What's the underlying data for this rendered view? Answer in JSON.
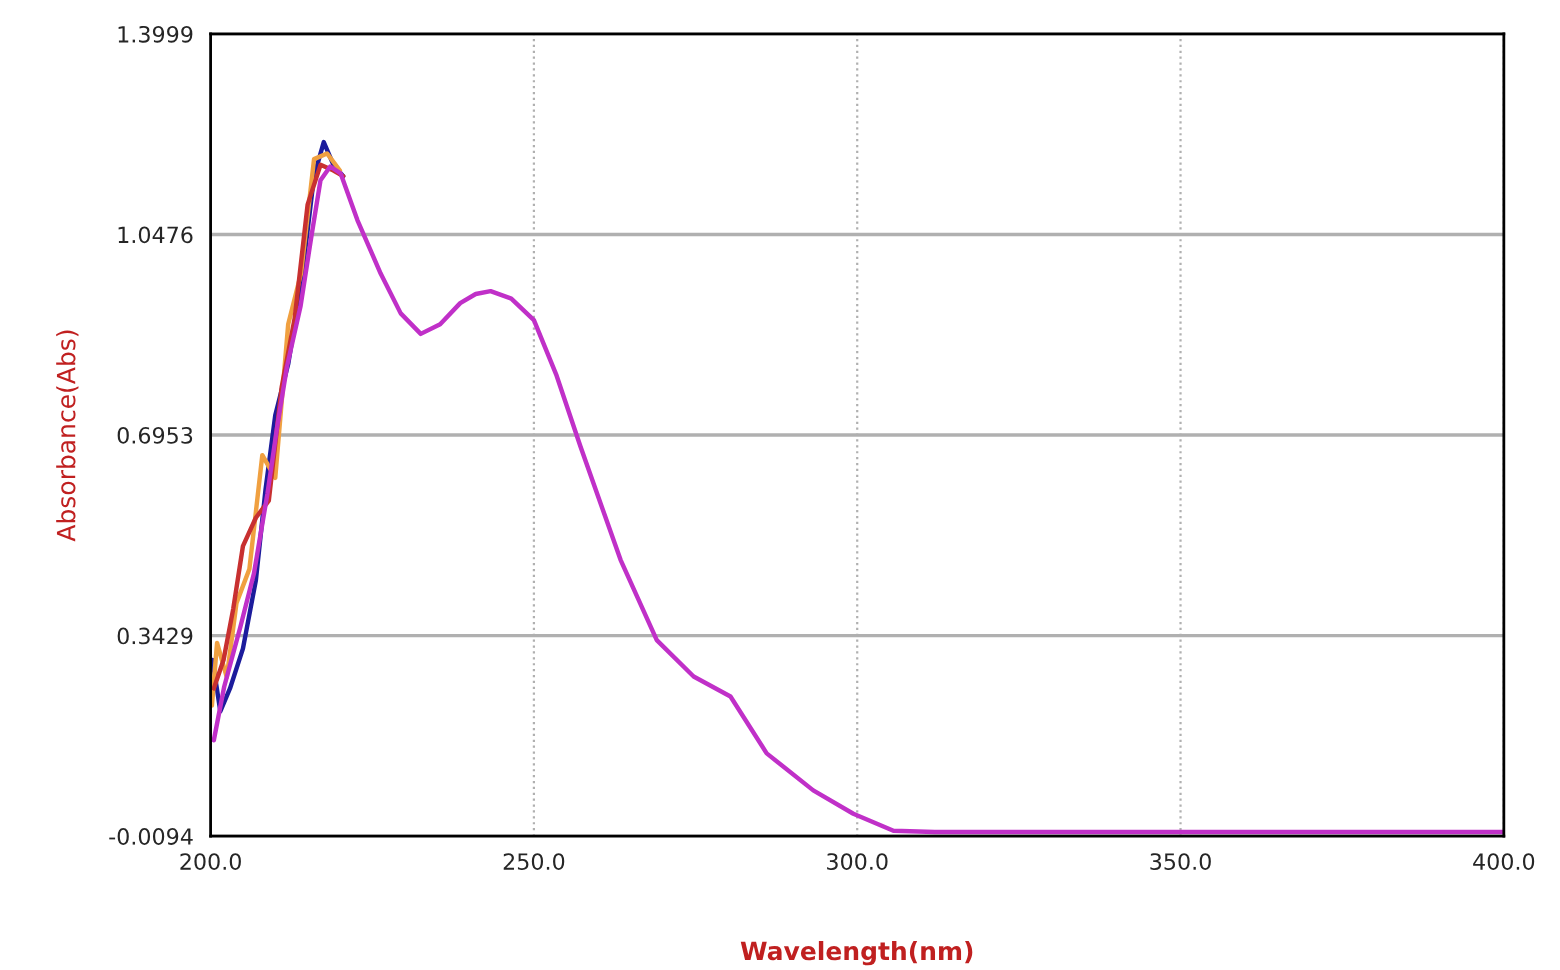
{
  "chart_data": {
    "type": "line",
    "xlabel": "Wavelength(nm)",
    "ylabel": "Absorbance(Abs)",
    "xlim": [
      200,
      400
    ],
    "ylim": [
      -0.0094,
      1.3999
    ],
    "xticks": [
      {
        "value": 200,
        "label": "200.0"
      },
      {
        "value": 250,
        "label": "250.0"
      },
      {
        "value": 300,
        "label": "300.0"
      },
      {
        "value": 350,
        "label": "350.0"
      },
      {
        "value": 400,
        "label": "400.0"
      }
    ],
    "yticks": [
      -0.0094,
      0.3429,
      0.6953,
      1.0476,
      1.3999
    ],
    "grid": true,
    "line_style": "solid",
    "marker": "none",
    "series": [
      {
        "color": "#1c1c9c",
        "x": [
          200.3,
          201.5,
          203,
          205,
          207,
          208.5,
          210,
          212,
          214,
          216,
          217.5,
          219,
          220.5
        ],
        "values": [
          0.3,
          0.21,
          0.25,
          0.32,
          0.44,
          0.6,
          0.73,
          0.82,
          0.96,
          1.15,
          1.21,
          1.17,
          1.15
        ]
      },
      {
        "color": "#f0a040",
        "x": [
          200.2,
          201,
          202.5,
          204,
          206,
          208,
          210,
          212,
          214,
          216,
          218,
          220
        ],
        "values": [
          0.22,
          0.33,
          0.27,
          0.4,
          0.46,
          0.66,
          0.62,
          0.89,
          0.98,
          1.18,
          1.19,
          1.16
        ]
      },
      {
        "color": "#c83030",
        "x": [
          200.5,
          202,
          203.5,
          205,
          207,
          209,
          211,
          213,
          215,
          217,
          219,
          220.5
        ],
        "values": [
          0.25,
          0.3,
          0.39,
          0.5,
          0.55,
          0.58,
          0.78,
          0.9,
          1.1,
          1.17,
          1.16,
          1.15
        ]
      },
      {
        "color": "#c030c8",
        "x": [
          200.5,
          202.1,
          204.6,
          206.7,
          208.8,
          210.3,
          211.8,
          213.9,
          215.5,
          217.0,
          218.5,
          220.1,
          222.7,
          226.3,
          229.4,
          232.5,
          235.5,
          238.6,
          241,
          243.3,
          246.5,
          250,
          253.5,
          257.2,
          263.4,
          269.0,
          274.7,
          280.4,
          286.0,
          293.2,
          299.4,
          305.6,
          312,
          330,
          350,
          370,
          400
        ],
        "values": [
          0.159,
          0.253,
          0.358,
          0.452,
          0.593,
          0.71,
          0.815,
          0.921,
          1.038,
          1.143,
          1.167,
          1.155,
          1.073,
          0.979,
          0.909,
          0.873,
          0.89,
          0.927,
          0.943,
          0.948,
          0.935,
          0.897,
          0.8,
          0.675,
          0.476,
          0.335,
          0.271,
          0.236,
          0.136,
          0.071,
          0.03,
          0.0,
          -0.002,
          -0.002,
          -0.002,
          -0.002,
          -0.002
        ]
      }
    ]
  }
}
